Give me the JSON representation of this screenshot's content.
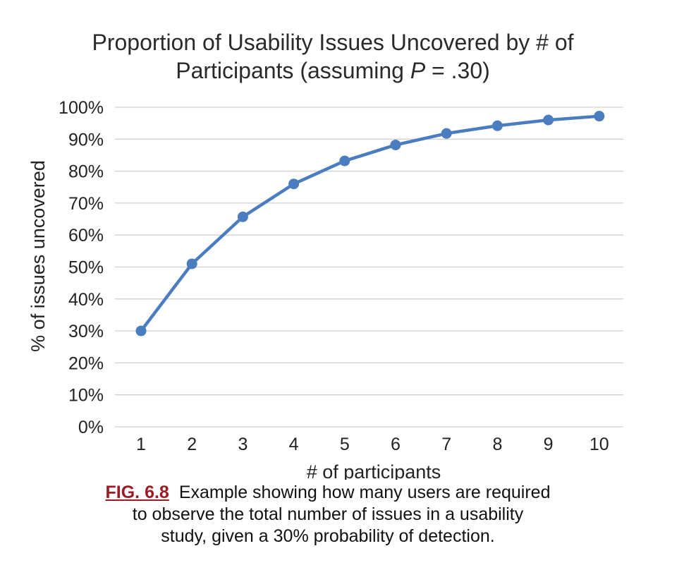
{
  "chart_data": {
    "type": "line",
    "title_line1": "Proportion of Usability Issues Uncovered by # of",
    "title_line2_prefix": "Participants (assuming ",
    "title_line2_italic": "P",
    "title_line2_suffix": " = .30)",
    "xlabel": "# of participants",
    "ylabel": "% of issues uncovered",
    "x": [
      1,
      2,
      3,
      4,
      5,
      6,
      7,
      8,
      9,
      10
    ],
    "x_tick_labels": [
      "1",
      "2",
      "3",
      "4",
      "5",
      "6",
      "7",
      "8",
      "9",
      "10"
    ],
    "series": [
      {
        "values": [
          30,
          51,
          65.7,
          76,
          83.2,
          88.2,
          91.8,
          94.2,
          96,
          97.2
        ]
      }
    ],
    "ylim": [
      0,
      100
    ],
    "y_tick_values": [
      0,
      10,
      20,
      30,
      40,
      50,
      60,
      70,
      80,
      90,
      100
    ],
    "y_tick_labels": [
      "0%",
      "10%",
      "20%",
      "30%",
      "40%",
      "50%",
      "60%",
      "70%",
      "80%",
      "90%",
      "100%"
    ],
    "grid": true,
    "legend": "none",
    "colors": {
      "line": "#4a7cc0",
      "grid": "#d0d0d0"
    }
  },
  "caption": {
    "label": "FIG. 6.8",
    "line1": "Example showing how many users are required",
    "line2": "to observe the total number of issues in a usability",
    "line3": "study, given a 30% probability of detection."
  }
}
